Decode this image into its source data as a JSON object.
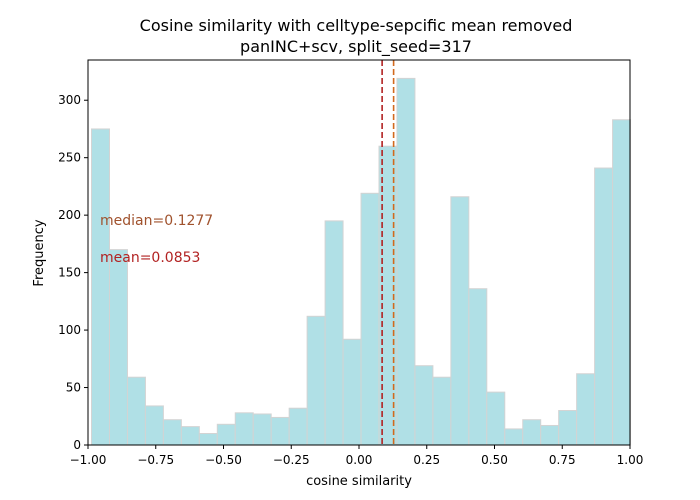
{
  "chart_data": {
    "type": "histogram",
    "title": "Cosine similarity with celltype-sepcific mean removed",
    "subtitle": "panINC+scv, split_seed=317",
    "xlabel": "cosine similarity",
    "ylabel": "Frequency",
    "xlim": [
      -1.0,
      1.0
    ],
    "ylim": [
      0,
      335
    ],
    "x_ticks": [
      -1.0,
      -0.75,
      -0.5,
      -0.25,
      0.0,
      0.25,
      0.5,
      0.75,
      1.0
    ],
    "x_tick_labels": [
      "−1.00",
      "−0.75",
      "−0.50",
      "−0.25",
      "0.00",
      "0.25",
      "0.50",
      "0.75",
      "1.00"
    ],
    "y_ticks": [
      0,
      50,
      100,
      150,
      200,
      250,
      300
    ],
    "y_tick_labels": [
      "0",
      "50",
      "100",
      "150",
      "200",
      "250",
      "300"
    ],
    "bin_start": -0.987,
    "bin_width": 0.0663,
    "counts": [
      275,
      170,
      59,
      34,
      22,
      16,
      10,
      18,
      28,
      27,
      24,
      32,
      112,
      195,
      92,
      219,
      260,
      319,
      69,
      59,
      216,
      136,
      46,
      14,
      22,
      17,
      30,
      62,
      241,
      283
    ],
    "bar_color": "#b0e0e6",
    "bar_edge_color": "#d3d3d3",
    "mean_value": 0.0853,
    "median_value": 0.1277,
    "mean_label": "mean=0.0853",
    "median_label": "median=0.1277",
    "mean_color": "#b22222",
    "median_color": "#d2691e",
    "mean_annotation_color": "#b22222",
    "median_annotation_color": "#a0522d",
    "grid": false,
    "legend": "none"
  }
}
